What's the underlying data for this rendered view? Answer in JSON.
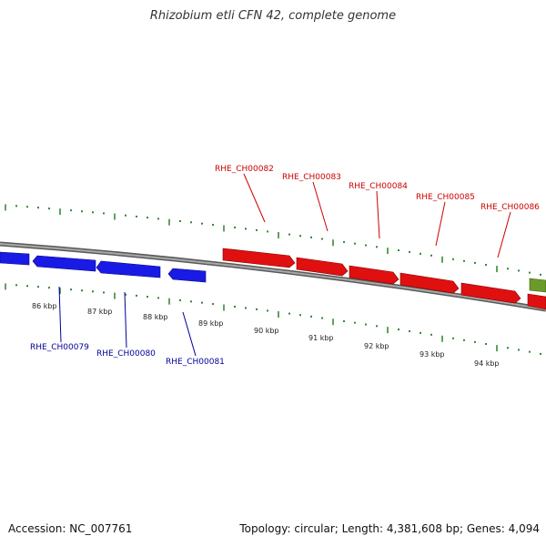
{
  "title": "Rhizobium etli CFN 42, complete genome",
  "footer": {
    "accession": "Accession: NC_007761",
    "summary": "Topology: circular; Length: 4,381,608 bp; Genes: 4,094"
  },
  "colors": {
    "forward_gene": "#e01010",
    "reverse_gene": "#1a1ae6",
    "other_gene": "#6b9a2a",
    "backbone": "#8a8a8a",
    "ticks": "#1a7a1a",
    "forward_label": "#cc0000",
    "reverse_label": "#000099"
  },
  "scale_labels": [
    "86 kbp",
    "87 kbp",
    "88 kbp",
    "89 kbp",
    "90 kbp",
    "91 kbp",
    "92 kbp",
    "93 kbp",
    "94 kbp"
  ],
  "genes_top": [
    {
      "name": "RHE_CH00082"
    },
    {
      "name": "RHE_CH00083"
    },
    {
      "name": "RHE_CH00084"
    },
    {
      "name": "RHE_CH00085"
    },
    {
      "name": "RHE_CH00086"
    }
  ],
  "genes_bottom": [
    {
      "name": "RHE_CH00079"
    },
    {
      "name": "RHE_CH00080"
    },
    {
      "name": "RHE_CH00081"
    }
  ]
}
